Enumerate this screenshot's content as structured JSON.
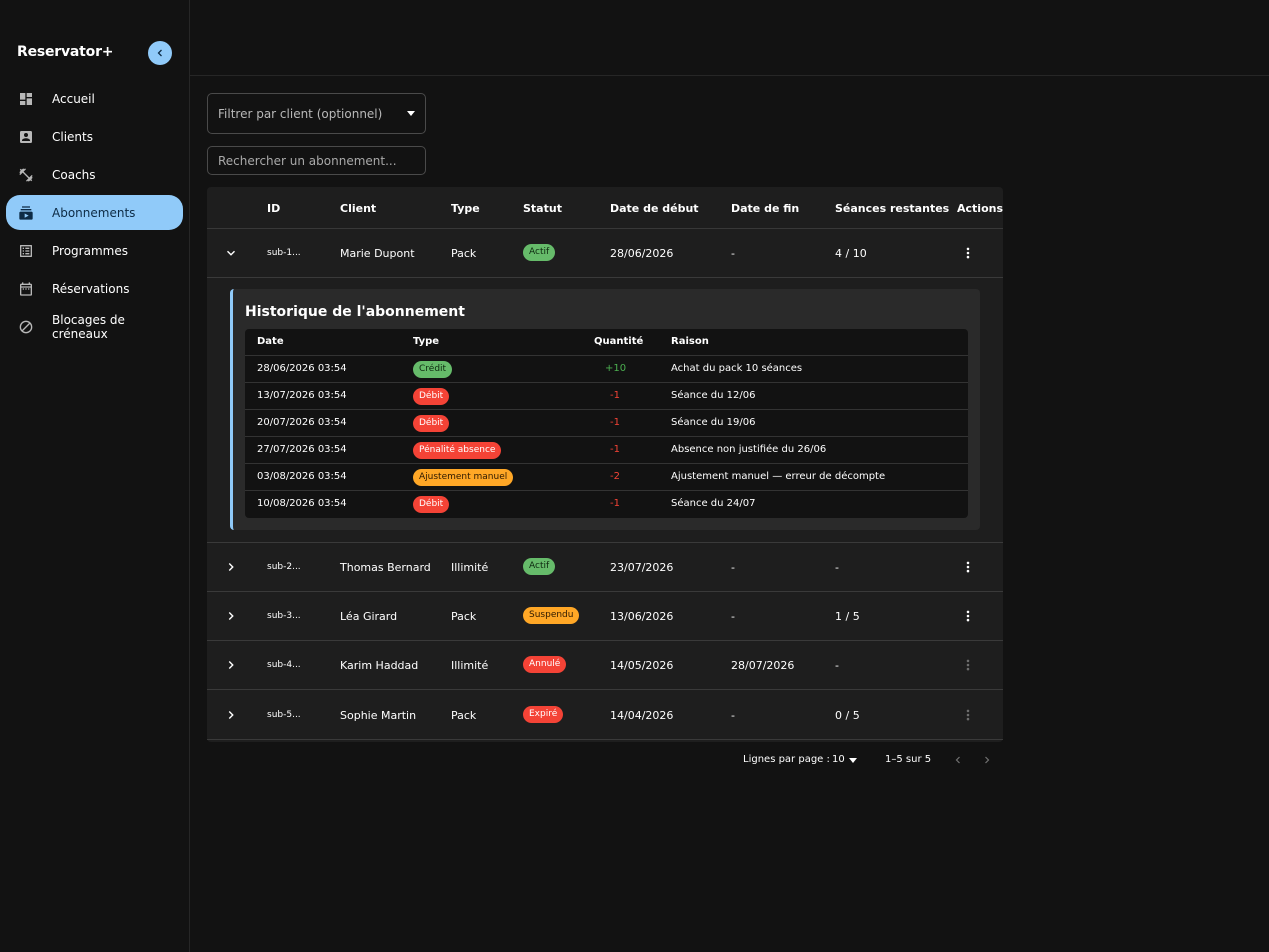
{
  "app": {
    "name": "Reservator+"
  },
  "sidebar": {
    "items": [
      {
        "label": "Accueil",
        "icon": "dashboard-icon"
      },
      {
        "label": "Clients",
        "icon": "contact-card-icon"
      },
      {
        "label": "Coachs",
        "icon": "fitness-icon"
      },
      {
        "label": "Abonnements",
        "icon": "subscriptions-icon",
        "active": true
      },
      {
        "label": "Programmes",
        "icon": "list-alt-icon"
      },
      {
        "label": "Réservations",
        "icon": "calendar-icon"
      },
      {
        "label": "Blocages de créneaux",
        "icon": "block-icon"
      }
    ]
  },
  "filters": {
    "client_label": "Filtrer par client (optionnel)",
    "search_placeholder": "Rechercher un abonnement..."
  },
  "table": {
    "headers": {
      "id": "ID",
      "client": "Client",
      "type": "Type",
      "status": "Statut",
      "start": "Date de début",
      "end": "Date de fin",
      "sessions": "Séances restantes",
      "actions": "Actions"
    },
    "rows": [
      {
        "id": "sub-1...",
        "client": "Marie Dupont",
        "type": "Pack",
        "status": "Actif",
        "status_color": "#66bb6a",
        "start": "28/06/2026",
        "end": "-",
        "sessions": "4 / 10",
        "expanded": true
      },
      {
        "id": "sub-2...",
        "client": "Thomas Bernard",
        "type": "Illimité",
        "status": "Actif",
        "status_color": "#66bb6a",
        "start": "23/07/2026",
        "end": "-",
        "sessions": "-"
      },
      {
        "id": "sub-3...",
        "client": "Léa Girard",
        "type": "Pack",
        "status": "Suspendu",
        "status_color": "#ffa726",
        "start": "13/06/2026",
        "end": "-",
        "sessions": "1 / 5"
      },
      {
        "id": "sub-4...",
        "client": "Karim Haddad",
        "type": "Illimité",
        "status": "Annulé",
        "status_color": "#f44336",
        "start": "14/05/2026",
        "end": "28/07/2026",
        "sessions": "-"
      },
      {
        "id": "sub-5...",
        "client": "Sophie Martin",
        "type": "Pack",
        "status": "Expiré",
        "status_color": "#f44336",
        "start": "14/04/2026",
        "end": "-",
        "sessions": "0 / 5"
      }
    ]
  },
  "history": {
    "title": "Historique de l'abonnement",
    "headers": {
      "date": "Date",
      "type": "Type",
      "qty": "Quantité",
      "reason": "Raison"
    },
    "rows": [
      {
        "date": "28/06/2026 03:54",
        "type": "Crédit",
        "qty": "+10",
        "reason": "Achat du pack 10 séances"
      },
      {
        "date": "13/07/2026 03:54",
        "type": "Débit",
        "qty": "-1",
        "reason": "Séance du 12/06"
      },
      {
        "date": "20/07/2026 03:54",
        "type": "Débit",
        "qty": "-1",
        "reason": "Séance du 19/06"
      },
      {
        "date": "27/07/2026 03:54",
        "type": "Pénalité absence",
        "qty": "-1",
        "reason": "Absence non justifiée du 26/06"
      },
      {
        "date": "03/08/2026 03:54",
        "type": "Ajustement manuel",
        "qty": "-2",
        "reason": "Ajustement manuel — erreur de décompte"
      },
      {
        "date": "10/08/2026 03:54",
        "type": "Débit",
        "qty": "-1",
        "reason": "Séance du 24/07"
      }
    ]
  },
  "pagination": {
    "rows_per_page_label": "Lignes par page :",
    "rows_per_page": "10",
    "range": "1–5 sur 5"
  }
}
